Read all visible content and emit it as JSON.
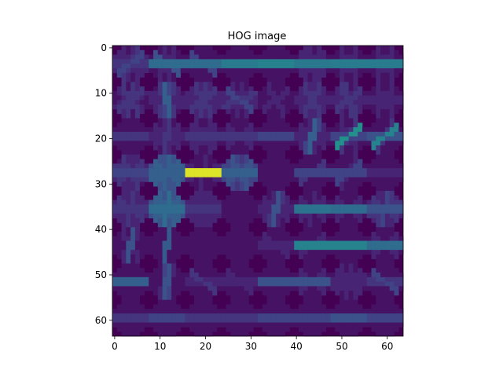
{
  "chart_data": {
    "type": "heatmap",
    "title": "HOG image",
    "xlabel": "",
    "ylabel": "",
    "xlim": [
      -0.5,
      63.5
    ],
    "ylim": [
      63.5,
      -0.5
    ],
    "x_ticks": [
      0,
      10,
      20,
      30,
      40,
      50,
      60
    ],
    "y_ticks": [
      0,
      10,
      20,
      30,
      40,
      50,
      60
    ],
    "x_tick_labels": [
      "0",
      "10",
      "20",
      "30",
      "40",
      "50",
      "60"
    ],
    "y_tick_labels": [
      "0",
      "10",
      "20",
      "30",
      "40",
      "50",
      "60"
    ],
    "grid": false,
    "colormap": "viridis",
    "grid_size": 64,
    "cell_size": 8,
    "cells": [
      [
        {
          "o": [
            0.15,
            0.1,
            0.2,
            0.15,
            0.1,
            0.05,
            0.1,
            0.1,
            0.1
          ]
        },
        {
          "o": [
            0.35,
            0.05,
            0.05,
            0.1,
            0.05,
            0.1,
            0.05,
            0.25,
            0.05
          ]
        },
        {
          "o": [
            0.35,
            0.05,
            0.05,
            0.05,
            0.05,
            0.05,
            0.05,
            0.2,
            0.05
          ]
        },
        {
          "o": [
            0.42,
            0.05,
            0.05,
            0.05,
            0.05,
            0.05,
            0.05,
            0.05,
            0.05
          ]
        },
        {
          "o": [
            0.45,
            0.05,
            0.05,
            0.05,
            0.05,
            0.05,
            0.05,
            0.05,
            0.05
          ]
        },
        {
          "o": [
            0.4,
            0.05,
            0.1,
            0.1,
            0.05,
            0.1,
            0.1,
            0.1,
            0.05
          ]
        },
        {
          "o": [
            0.42,
            0.05,
            0.05,
            0.1,
            0.05,
            0.05,
            0.1,
            0.05,
            0.05
          ]
        },
        {
          "o": [
            0.42,
            0.05,
            0.05,
            0.1,
            0.05,
            0.05,
            0.1,
            0.05,
            0.05
          ]
        }
      ],
      [
        {
          "o": [
            0.05,
            0.1,
            0.15,
            0.1,
            0.15,
            0.05,
            0.15,
            0.1,
            0.05
          ]
        },
        {
          "o": [
            0.1,
            0.05,
            0.1,
            0.15,
            0.2,
            0.3,
            0.15,
            0.05,
            0.1
          ]
        },
        {
          "o": [
            0.1,
            0.1,
            0.15,
            0.1,
            0.15,
            0.1,
            0.15,
            0.1,
            0.1
          ]
        },
        {
          "o": [
            0.1,
            0.15,
            0.1,
            0.05,
            0.1,
            0.05,
            0.1,
            0.2,
            0.1
          ]
        },
        {
          "o": [
            0.05,
            0.05,
            0.1,
            0.05,
            0.05,
            0.05,
            0.1,
            0.05,
            0.05
          ]
        },
        {
          "o": [
            0.1,
            0.05,
            0.1,
            0.15,
            0.1,
            0.1,
            0.15,
            0.1,
            0.05
          ]
        },
        {
          "o": [
            0.1,
            0.05,
            0.15,
            0.1,
            0.05,
            0.15,
            0.15,
            0.1,
            0.05
          ]
        },
        {
          "o": [
            0.1,
            0.05,
            0.05,
            0.1,
            0.05,
            0.05,
            0.1,
            0.05,
            0.05
          ]
        }
      ],
      [
        {
          "o": [
            0.15,
            0.05,
            0.05,
            0.05,
            0.05,
            0.05,
            0.05,
            0.05,
            0.05
          ]
        },
        {
          "o": [
            0.1,
            0.05,
            0.1,
            0.05,
            0.15,
            0.1,
            0.05,
            0.1,
            0.05
          ]
        },
        {
          "o": [
            0.15,
            0.05,
            0.1,
            0.1,
            0.05,
            0.05,
            0.1,
            0.1,
            0.05
          ]
        },
        {
          "o": [
            0.15,
            0.05,
            0.1,
            0.05,
            0.05,
            0.05,
            0.05,
            0.1,
            0.05
          ]
        },
        {
          "o": [
            0.2,
            0.05,
            0.05,
            0.05,
            0.05,
            0.05,
            0.05,
            0.05,
            0.05
          ]
        },
        {
          "o": [
            0.1,
            0.05,
            0.1,
            0.2,
            0.3,
            0.1,
            0.05,
            0.1,
            0.05
          ]
        },
        {
          "o": [
            0.2,
            0.05,
            0.5,
            0.15,
            0.05,
            0.05,
            0.1,
            0.05,
            0.05
          ]
        },
        {
          "o": [
            0.25,
            0.05,
            0.45,
            0.15,
            0.05,
            0.05,
            0.05,
            0.05,
            0.05
          ]
        }
      ],
      [
        {
          "o": [
            0.2,
            0.1,
            0.15,
            0.1,
            0.1,
            0.1,
            0.15,
            0.05,
            0.15
          ]
        },
        {
          "o": [
            0.3,
            0.3,
            0.3,
            0.25,
            0.3,
            0.25,
            0.25,
            0.3,
            0.25
          ]
        },
        {
          "o": [
            0.95,
            0.1,
            0.05,
            0.05,
            0.1,
            0.05,
            0.05,
            0.05,
            0.1
          ]
        },
        {
          "o": [
            0.3,
            0.2,
            0.25,
            0.2,
            0.15,
            0.2,
            0.25,
            0.2,
            0.2
          ]
        },
        {
          "o": [
            0.05,
            0.05,
            0.05,
            0.05,
            0.05,
            0.05,
            0.05,
            0.05,
            0.05
          ]
        },
        {
          "o": [
            0.2,
            0.05,
            0.15,
            0.05,
            0.05,
            0.05,
            0.05,
            0.05,
            0.05
          ]
        },
        {
          "o": [
            0.2,
            0.05,
            0.2,
            0.1,
            0.05,
            0.05,
            0.05,
            0.05,
            0.05
          ]
        },
        {
          "o": [
            0.1,
            0.05,
            0.05,
            0.05,
            0.05,
            0.05,
            0.05,
            0.05,
            0.05
          ]
        }
      ],
      [
        {
          "o": [
            0.15,
            0.1,
            0.1,
            0.1,
            0.15,
            0.1,
            0.1,
            0.15,
            0.1
          ]
        },
        {
          "o": [
            0.35,
            0.25,
            0.3,
            0.25,
            0.35,
            0.25,
            0.3,
            0.3,
            0.25
          ]
        },
        {
          "o": [
            0.15,
            0.1,
            0.1,
            0.1,
            0.1,
            0.1,
            0.1,
            0.1,
            0.1
          ]
        },
        {
          "o": [
            0.05,
            0.05,
            0.05,
            0.05,
            0.05,
            0.05,
            0.05,
            0.05,
            0.05
          ]
        },
        {
          "o": [
            0.1,
            0.05,
            0.1,
            0.15,
            0.25,
            0.1,
            0.05,
            0.1,
            0.05
          ]
        },
        {
          "o": [
            0.38,
            0.05,
            0.1,
            0.05,
            0.1,
            0.05,
            0.05,
            0.1,
            0.05
          ]
        },
        {
          "o": [
            0.35,
            0.05,
            0.1,
            0.05,
            0.05,
            0.05,
            0.05,
            0.1,
            0.05
          ]
        },
        {
          "o": [
            0.25,
            0.15,
            0.1,
            0.15,
            0.2,
            0.1,
            0.1,
            0.15,
            0.1
          ]
        }
      ],
      [
        {
          "o": [
            0.05,
            0.05,
            0.05,
            0.1,
            0.25,
            0.05,
            0.1,
            0.05,
            0.05
          ]
        },
        {
          "o": [
            0.05,
            0.05,
            0.05,
            0.05,
            0.28,
            0.05,
            0.05,
            0.05,
            0.05
          ]
        },
        {
          "o": [
            0.05,
            0.05,
            0.05,
            0.05,
            0.05,
            0.05,
            0.05,
            0.05,
            0.05
          ]
        },
        {
          "o": [
            0.05,
            0.05,
            0.05,
            0.05,
            0.05,
            0.05,
            0.05,
            0.05,
            0.05
          ]
        },
        {
          "o": [
            0.1,
            0.05,
            0.05,
            0.05,
            0.05,
            0.05,
            0.05,
            0.1,
            0.05
          ]
        },
        {
          "o": [
            0.45,
            0.05,
            0.1,
            0.05,
            0.05,
            0.05,
            0.05,
            0.05,
            0.05
          ]
        },
        {
          "o": [
            0.45,
            0.05,
            0.05,
            0.05,
            0.05,
            0.05,
            0.05,
            0.05,
            0.05
          ]
        },
        {
          "o": [
            0.35,
            0.05,
            0.1,
            0.05,
            0.05,
            0.05,
            0.05,
            0.1,
            0.05
          ]
        }
      ],
      [
        {
          "o": [
            0.3,
            0.05,
            0.05,
            0.05,
            0.05,
            0.05,
            0.05,
            0.05,
            0.05
          ]
        },
        {
          "o": [
            0.05,
            0.05,
            0.05,
            0.1,
            0.25,
            0.2,
            0.05,
            0.05,
            0.05
          ]
        },
        {
          "o": [
            0.1,
            0.05,
            0.05,
            0.05,
            0.05,
            0.05,
            0.05,
            0.15,
            0.05
          ]
        },
        {
          "o": [
            0.1,
            0.05,
            0.05,
            0.05,
            0.05,
            0.05,
            0.05,
            0.1,
            0.05
          ]
        },
        {
          "o": [
            0.25,
            0.05,
            0.05,
            0.05,
            0.05,
            0.05,
            0.05,
            0.05,
            0.05
          ]
        },
        {
          "o": [
            0.25,
            0.05,
            0.1,
            0.05,
            0.05,
            0.05,
            0.05,
            0.1,
            0.05
          ]
        },
        {
          "o": [
            0.1,
            0.1,
            0.1,
            0.05,
            0.1,
            0.05,
            0.1,
            0.1,
            0.05
          ]
        },
        {
          "o": [
            0.15,
            0.05,
            0.05,
            0.05,
            0.05,
            0.05,
            0.05,
            0.2,
            0.05
          ]
        }
      ],
      [
        {
          "o": [
            0.15,
            0.05,
            0.05,
            0.05,
            0.05,
            0.05,
            0.05,
            0.05,
            0.05
          ]
        },
        {
          "o": [
            0.2,
            0.05,
            0.05,
            0.05,
            0.05,
            0.05,
            0.05,
            0.05,
            0.05
          ]
        },
        {
          "o": [
            0.15,
            0.05,
            0.05,
            0.05,
            0.05,
            0.05,
            0.05,
            0.05,
            0.05
          ]
        },
        {
          "o": [
            0.15,
            0.05,
            0.05,
            0.05,
            0.05,
            0.05,
            0.05,
            0.05,
            0.05
          ]
        },
        {
          "o": [
            0.2,
            0.05,
            0.05,
            0.05,
            0.05,
            0.05,
            0.05,
            0.05,
            0.05
          ]
        },
        {
          "o": [
            0.2,
            0.05,
            0.05,
            0.05,
            0.05,
            0.05,
            0.05,
            0.05,
            0.05
          ]
        },
        {
          "o": [
            0.25,
            0.05,
            0.05,
            0.05,
            0.05,
            0.05,
            0.05,
            0.05,
            0.05
          ]
        },
        {
          "o": [
            0.2,
            0.05,
            0.05,
            0.05,
            0.05,
            0.05,
            0.05,
            0.05,
            0.05
          ]
        }
      ]
    ]
  }
}
